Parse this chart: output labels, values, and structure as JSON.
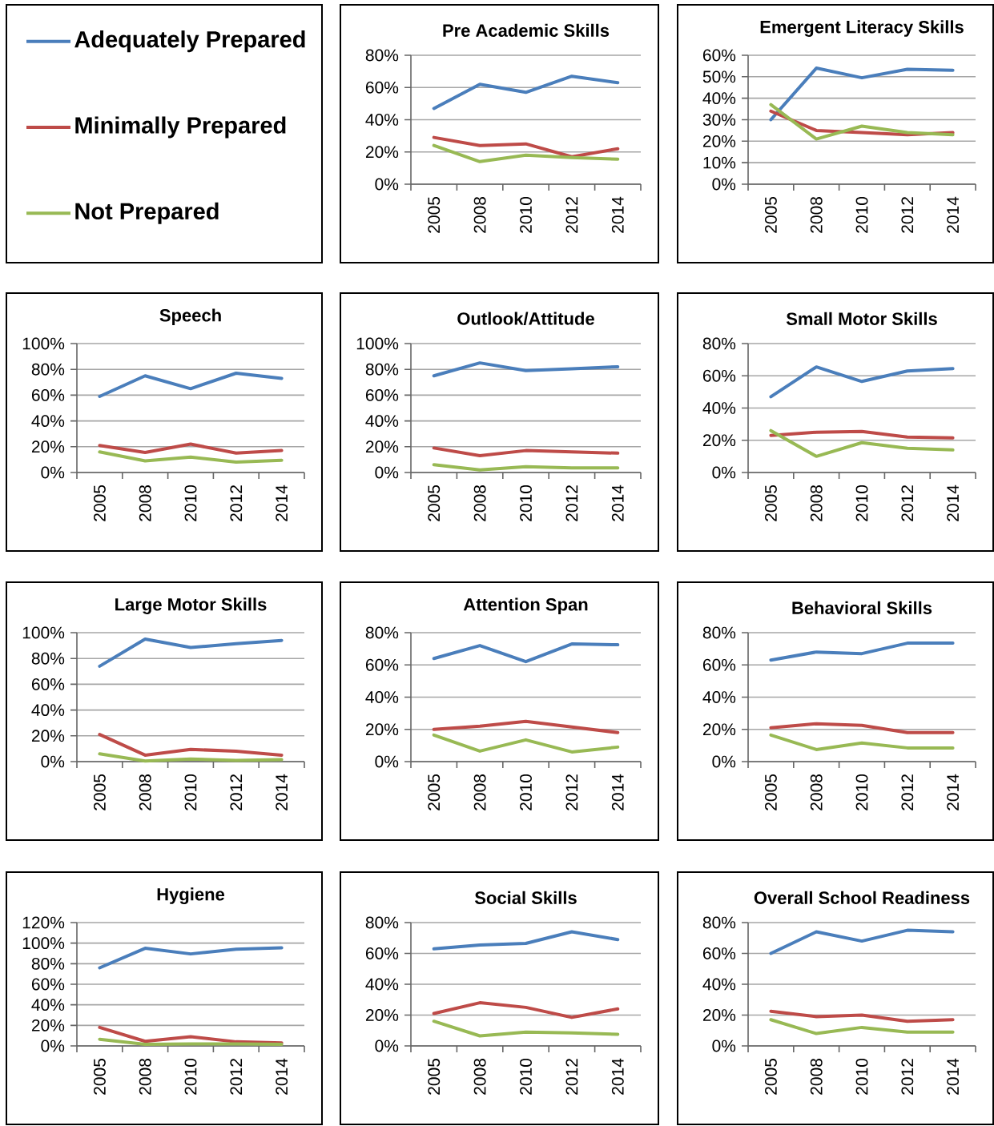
{
  "chart_data": [
    {
      "type": "line",
      "title": "Pre Academic Skills",
      "legend": "left",
      "grid": "y",
      "categories": [
        "2005",
        "2008",
        "2010",
        "2012",
        "2014"
      ],
      "ylim": [
        0,
        80
      ],
      "yticks": [
        {
          "value": 0,
          "label": "0%"
        },
        {
          "value": 20,
          "label": "20%"
        },
        {
          "value": 40,
          "label": "40%"
        },
        {
          "value": 60,
          "label": "60%"
        },
        {
          "value": 80,
          "label": "80%"
        }
      ],
      "series": [
        {
          "name": "Adequately Prepared",
          "color": "#4a7ebb",
          "values": [
            47,
            62,
            57,
            67,
            63
          ]
        },
        {
          "name": "Minimally Prepared",
          "color": "#be4b48",
          "values": [
            29,
            24,
            25,
            17,
            22
          ]
        },
        {
          "name": "Not Prepared",
          "color": "#98b954",
          "values": [
            24,
            14,
            18,
            16.5,
            15.5
          ]
        }
      ]
    },
    {
      "type": "line",
      "title": "Emergent Literacy Skills",
      "grid": "y",
      "categories": [
        "2005",
        "2008",
        "2010",
        "2012",
        "2014"
      ],
      "ylim": [
        0,
        60
      ],
      "yticks": [
        {
          "value": 0,
          "label": "0%"
        },
        {
          "value": 10,
          "label": "10%"
        },
        {
          "value": 20,
          "label": "20%"
        },
        {
          "value": 30,
          "label": "30%"
        },
        {
          "value": 40,
          "label": "40%"
        },
        {
          "value": 50,
          "label": "50%"
        },
        {
          "value": 60,
          "label": "60%"
        }
      ],
      "series": [
        {
          "color": "#4a7ebb",
          "values": [
            30,
            54,
            49.5,
            53.5,
            53
          ]
        },
        {
          "color": "#be4b48",
          "values": [
            34,
            25,
            24,
            23,
            24
          ]
        },
        {
          "color": "#98b954",
          "values": [
            37,
            21,
            27,
            24,
            23
          ]
        }
      ]
    },
    {
      "type": "line",
      "title": "Speech",
      "grid": "y",
      "categories": [
        "2005",
        "2008",
        "2010",
        "2012",
        "2014"
      ],
      "ylim": [
        0,
        100
      ],
      "yticks": [
        {
          "value": 0,
          "label": "0%"
        },
        {
          "value": 20,
          "label": "20%"
        },
        {
          "value": 40,
          "label": "40%"
        },
        {
          "value": 60,
          "label": "60%"
        },
        {
          "value": 80,
          "label": "80%"
        },
        {
          "value": 100,
          "label": "100%"
        }
      ],
      "series": [
        {
          "color": "#4a7ebb",
          "values": [
            59,
            75,
            65,
            77,
            73
          ]
        },
        {
          "color": "#be4b48",
          "values": [
            21,
            15.5,
            22,
            15,
            17
          ]
        },
        {
          "color": "#98b954",
          "values": [
            16,
            9,
            12,
            8,
            9.5
          ]
        }
      ]
    },
    {
      "type": "line",
      "title": "Outlook/Attitude",
      "grid": "y",
      "categories": [
        "2005",
        "2008",
        "2010",
        "2012",
        "2014"
      ],
      "ylim": [
        0,
        100
      ],
      "yticks": [
        {
          "value": 0,
          "label": "0%"
        },
        {
          "value": 20,
          "label": "20%"
        },
        {
          "value": 40,
          "label": "40%"
        },
        {
          "value": 60,
          "label": "60%"
        },
        {
          "value": 80,
          "label": "80%"
        },
        {
          "value": 100,
          "label": "100%"
        }
      ],
      "series": [
        {
          "color": "#4a7ebb",
          "values": [
            75,
            85,
            79,
            80.5,
            82
          ]
        },
        {
          "color": "#be4b48",
          "values": [
            19,
            13,
            17,
            16,
            15
          ]
        },
        {
          "color": "#98b954",
          "values": [
            6,
            2,
            4.5,
            3.5,
            3.5
          ]
        }
      ]
    },
    {
      "type": "line",
      "title": "Small Motor Skills",
      "grid": "y",
      "categories": [
        "2005",
        "2008",
        "2010",
        "2012",
        "2014"
      ],
      "ylim": [
        0,
        80
      ],
      "yticks": [
        {
          "value": 0,
          "label": "0%"
        },
        {
          "value": 20,
          "label": "20%"
        },
        {
          "value": 40,
          "label": "40%"
        },
        {
          "value": 60,
          "label": "60%"
        },
        {
          "value": 80,
          "label": "80%"
        }
      ],
      "series": [
        {
          "color": "#4a7ebb",
          "values": [
            47,
            65.5,
            56.5,
            63,
            64.5
          ]
        },
        {
          "color": "#be4b48",
          "values": [
            23,
            25,
            25.5,
            22,
            21.5
          ]
        },
        {
          "color": "#98b954",
          "values": [
            26,
            10,
            18.5,
            15,
            14
          ]
        }
      ]
    },
    {
      "type": "line",
      "title": "Large Motor Skills",
      "grid": "y",
      "categories": [
        "2005",
        "2008",
        "2010",
        "2012",
        "2014"
      ],
      "ylim": [
        0,
        100
      ],
      "yticks": [
        {
          "value": 0,
          "label": "0%"
        },
        {
          "value": 20,
          "label": "20%"
        },
        {
          "value": 40,
          "label": "40%"
        },
        {
          "value": 60,
          "label": "60%"
        },
        {
          "value": 80,
          "label": "80%"
        },
        {
          "value": 100,
          "label": "100%"
        }
      ],
      "series": [
        {
          "color": "#4a7ebb",
          "values": [
            74,
            95,
            88.5,
            91.5,
            94
          ]
        },
        {
          "color": "#be4b48",
          "values": [
            21,
            5,
            9.5,
            8,
            5
          ]
        },
        {
          "color": "#98b954",
          "values": [
            6,
            0.5,
            2,
            1,
            1.5
          ]
        }
      ]
    },
    {
      "type": "line",
      "title": "Attention Span",
      "grid": "y",
      "categories": [
        "2005",
        "2008",
        "2010",
        "2012",
        "2014"
      ],
      "ylim": [
        0,
        80
      ],
      "yticks": [
        {
          "value": 0,
          "label": "0%"
        },
        {
          "value": 20,
          "label": "20%"
        },
        {
          "value": 40,
          "label": "40%"
        },
        {
          "value": 60,
          "label": "60%"
        },
        {
          "value": 80,
          "label": "80%"
        }
      ],
      "series": [
        {
          "color": "#4a7ebb",
          "values": [
            64,
            72,
            62,
            73,
            72.5
          ]
        },
        {
          "color": "#be4b48",
          "values": [
            20,
            22,
            25,
            21.5,
            18
          ]
        },
        {
          "color": "#98b954",
          "values": [
            16.5,
            6.5,
            13.5,
            6,
            9
          ]
        }
      ]
    },
    {
      "type": "line",
      "title": "Behavioral Skills",
      "grid": "y",
      "categories": [
        "2005",
        "2008",
        "2010",
        "2012",
        "2014"
      ],
      "ylim": [
        0,
        80
      ],
      "yticks": [
        {
          "value": 0,
          "label": "0%"
        },
        {
          "value": 20,
          "label": "20%"
        },
        {
          "value": 40,
          "label": "40%"
        },
        {
          "value": 60,
          "label": "60%"
        },
        {
          "value": 80,
          "label": "80%"
        }
      ],
      "series": [
        {
          "color": "#4a7ebb",
          "values": [
            63,
            68,
            67,
            73.5,
            73.5
          ]
        },
        {
          "color": "#be4b48",
          "values": [
            21,
            23.5,
            22.5,
            18,
            18
          ]
        },
        {
          "color": "#98b954",
          "values": [
            16.5,
            7.5,
            11.5,
            8.5,
            8.5
          ]
        }
      ]
    },
    {
      "type": "line",
      "title": "Hygiene",
      "grid": "y",
      "categories": [
        "2005",
        "2008",
        "2010",
        "2012",
        "2014"
      ],
      "ylim": [
        0,
        120
      ],
      "yticks": [
        {
          "value": 0,
          "label": "0%"
        },
        {
          "value": 20,
          "label": "20%"
        },
        {
          "value": 40,
          "label": "40%"
        },
        {
          "value": 60,
          "label": "60%"
        },
        {
          "value": 80,
          "label": "80%"
        },
        {
          "value": 100,
          "label": "100%"
        },
        {
          "value": 120,
          "label": "120%"
        }
      ],
      "series": [
        {
          "color": "#4a7ebb",
          "values": [
            76,
            95,
            89.5,
            94,
            95.5
          ]
        },
        {
          "color": "#be4b48",
          "values": [
            18,
            4.5,
            9,
            4,
            3
          ]
        },
        {
          "color": "#98b954",
          "values": [
            6.5,
            1.5,
            2,
            2,
            1.5
          ]
        }
      ]
    },
    {
      "type": "line",
      "title": "Social Skills",
      "grid": "y",
      "categories": [
        "2005",
        "2008",
        "2010",
        "2012",
        "2014"
      ],
      "ylim": [
        0,
        80
      ],
      "yticks": [
        {
          "value": 0,
          "label": "0%"
        },
        {
          "value": 20,
          "label": "20%"
        },
        {
          "value": 40,
          "label": "40%"
        },
        {
          "value": 60,
          "label": "60%"
        },
        {
          "value": 80,
          "label": "80%"
        }
      ],
      "series": [
        {
          "color": "#4a7ebb",
          "values": [
            63,
            65.5,
            66.5,
            74,
            69
          ]
        },
        {
          "color": "#be4b48",
          "values": [
            21,
            28,
            25,
            18.5,
            24
          ]
        },
        {
          "color": "#98b954",
          "values": [
            16,
            6.5,
            9,
            8.5,
            7.5
          ]
        }
      ]
    },
    {
      "type": "line",
      "title": "Overall School Readiness",
      "grid": "y",
      "categories": [
        "2005",
        "2008",
        "2010",
        "2012",
        "2014"
      ],
      "ylim": [
        0,
        80
      ],
      "yticks": [
        {
          "value": 0,
          "label": "0%"
        },
        {
          "value": 20,
          "label": "20%"
        },
        {
          "value": 40,
          "label": "40%"
        },
        {
          "value": 60,
          "label": "60%"
        },
        {
          "value": 80,
          "label": "80%"
        }
      ],
      "series": [
        {
          "color": "#4a7ebb",
          "values": [
            60,
            74,
            68,
            75,
            74
          ]
        },
        {
          "color": "#be4b48",
          "values": [
            22.5,
            19,
            20,
            16,
            17
          ]
        },
        {
          "color": "#98b954",
          "values": [
            17,
            8,
            12,
            9,
            9
          ]
        }
      ]
    }
  ]
}
